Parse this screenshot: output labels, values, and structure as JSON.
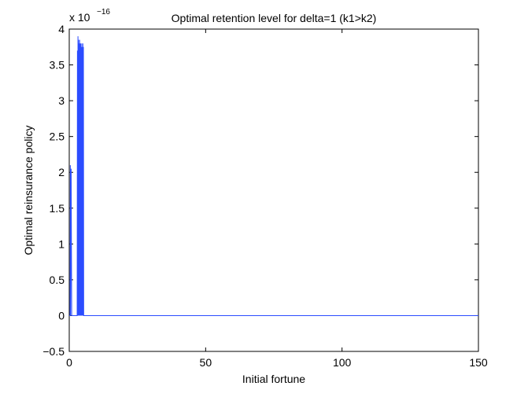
{
  "chart_data": {
    "type": "line",
    "title": "Optimal retention level for delta=1 (k1>k2)",
    "xlabel": "Initial fortune",
    "ylabel": "Optimal reinsurance policy",
    "xlim": [
      0,
      150
    ],
    "ylim": [
      -0.5,
      4
    ],
    "y_multiplier": "x 10",
    "y_multiplier_exponent": "−16",
    "grid": false,
    "legend": "none",
    "x_ticks": [
      0,
      50,
      100,
      150
    ],
    "x_tick_labels": [
      "0",
      "50",
      "100",
      "150"
    ],
    "y_ticks": [
      -0.5,
      0,
      0.5,
      1,
      1.5,
      2,
      2.5,
      3,
      3.5,
      4
    ],
    "y_tick_labels": [
      "−0.5",
      "0",
      "0.5",
      "1",
      "1.5",
      "2",
      "2.5",
      "3",
      "3.5",
      "4"
    ],
    "series_color": "#2b4cff",
    "series": [
      {
        "x": [
          0,
          0.3,
          0.4,
          0.5,
          0.7,
          0.9,
          1.0,
          1.2,
          2.9,
          3.0,
          3.1,
          3.2,
          3.3,
          3.4,
          3.5,
          3.6,
          3.7,
          3.8,
          3.9,
          4.0,
          4.1,
          4.2,
          4.3,
          4.4,
          4.5,
          4.6,
          4.7,
          4.8,
          4.9,
          5.0,
          5.1,
          5.2,
          5.3,
          150
        ],
        "y": [
          0,
          0,
          2.1,
          0,
          2.05,
          0,
          0,
          0,
          0,
          3.7,
          0,
          3.9,
          0,
          3.85,
          0,
          3.8,
          0,
          3.85,
          0,
          3.8,
          0,
          3.8,
          0,
          3.75,
          0,
          3.8,
          0,
          3.75,
          0,
          3.8,
          0,
          3.75,
          0,
          0
        ]
      }
    ]
  }
}
